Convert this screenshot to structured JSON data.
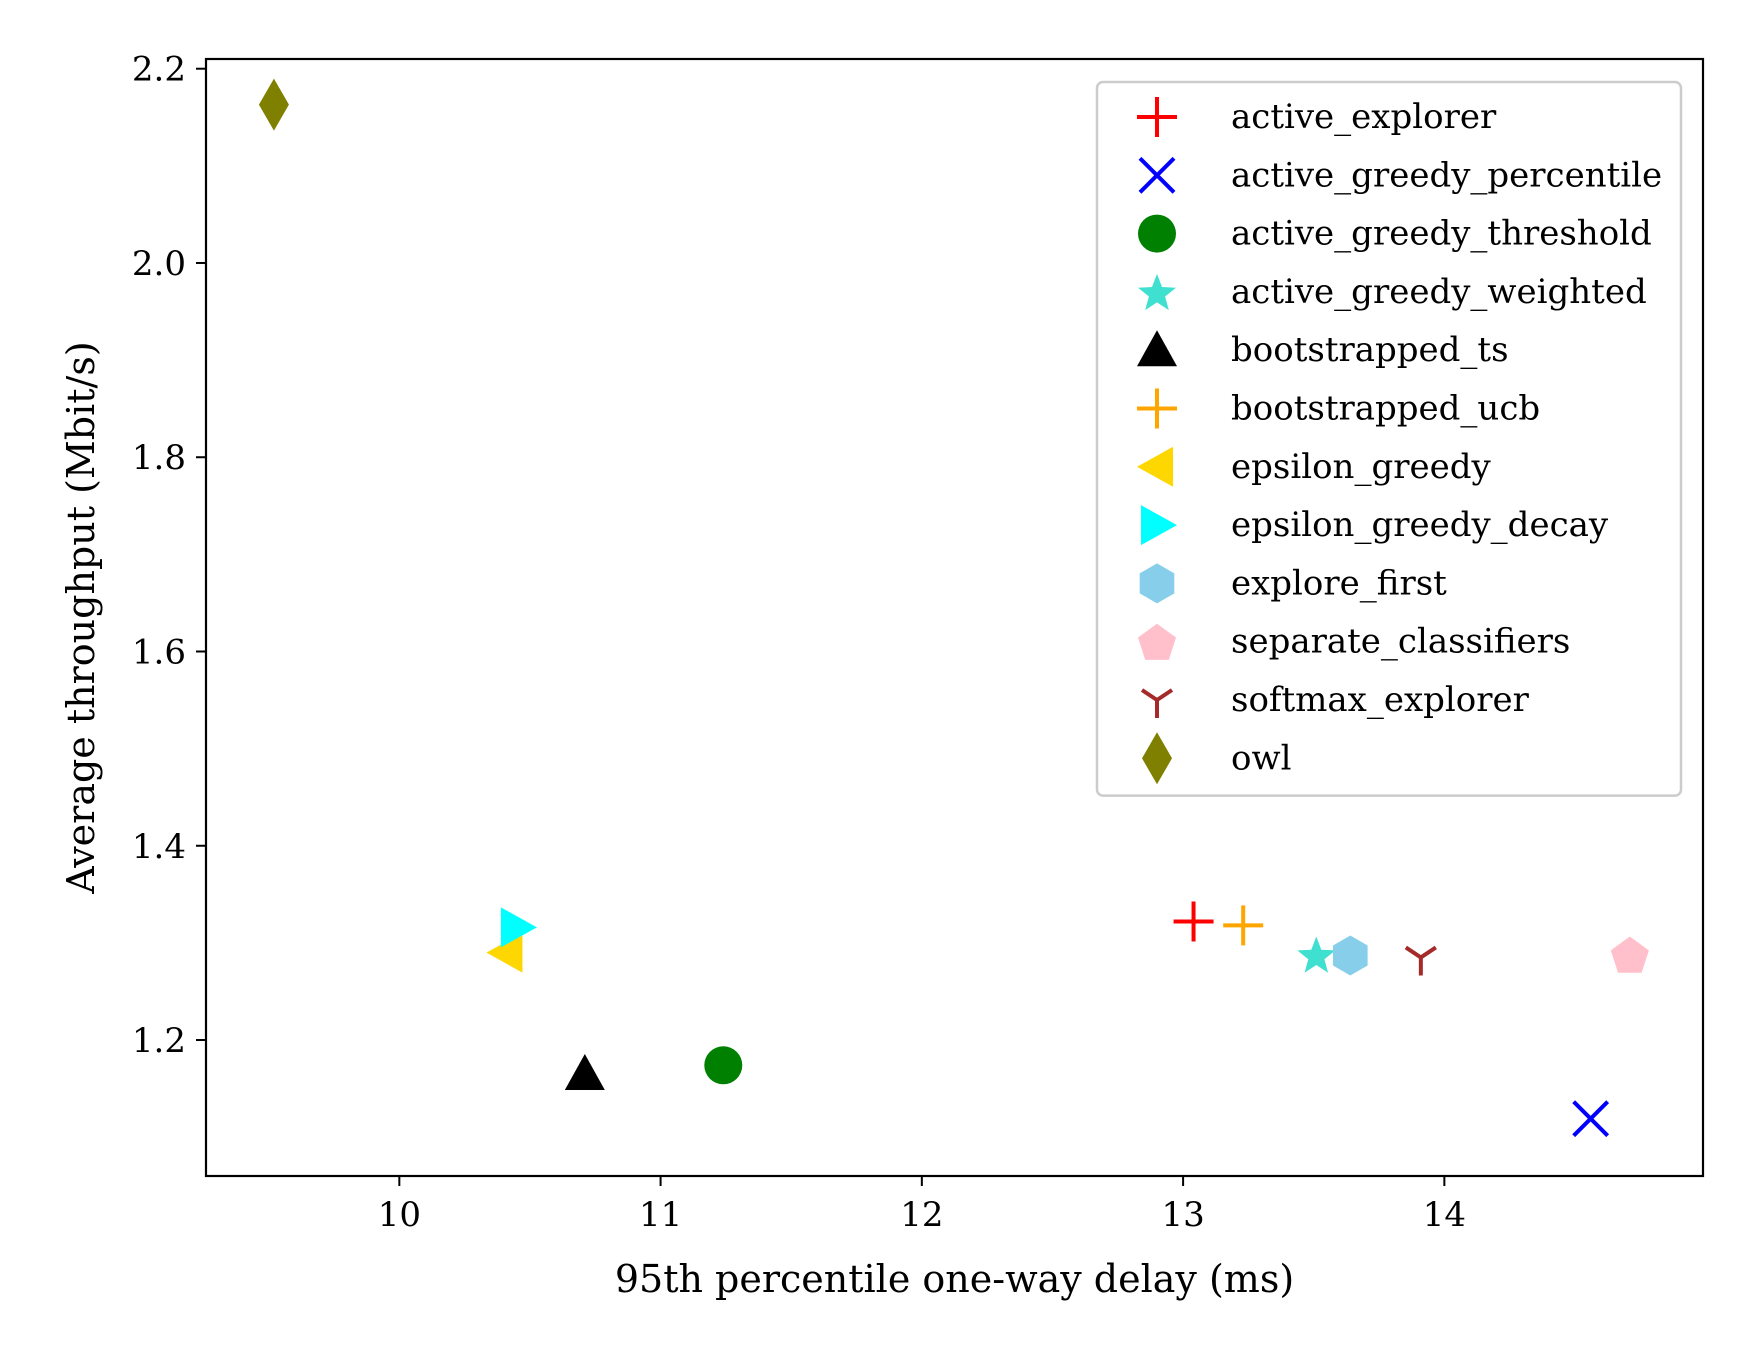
{
  "chart_data": {
    "type": "scatter",
    "xlabel": "95th percentile one-way delay (ms)",
    "ylabel": "Average throughput (Mbit/s)",
    "xlim": [
      9.26,
      14.99
    ],
    "ylim": [
      1.06,
      2.21
    ],
    "xticks": [
      10,
      11,
      12,
      13,
      14
    ],
    "yticks": [
      1.2,
      1.4,
      1.6,
      1.8,
      2.0,
      2.2
    ],
    "xtick_labels": [
      "10",
      "11",
      "12",
      "13",
      "14"
    ],
    "ytick_labels": [
      "1.2",
      "1.4",
      "1.6",
      "1.8",
      "2.0",
      "2.2"
    ],
    "grid": false,
    "legend_position": "top-right",
    "series": [
      {
        "name": "active_explorer",
        "marker": "plus",
        "color": "#ff0000",
        "x": 13.04,
        "y": 1.322
      },
      {
        "name": "active_greedy_percentile",
        "marker": "x",
        "color": "#0000ff",
        "x": 14.56,
        "y": 1.119
      },
      {
        "name": "active_greedy_threshold",
        "marker": "circle",
        "color": "#008000",
        "x": 11.24,
        "y": 1.174
      },
      {
        "name": "active_greedy_weighted",
        "marker": "star",
        "color": "#40e0d0",
        "x": 13.51,
        "y": 1.288
      },
      {
        "name": "bootstrapped_ts",
        "marker": "triangle-up",
        "color": "#000000",
        "x": 10.71,
        "y": 1.165
      },
      {
        "name": "bootstrapped_ucb",
        "marker": "plus",
        "color": "#ffa500",
        "x": 13.23,
        "y": 1.318
      },
      {
        "name": "epsilon_greedy",
        "marker": "triangle-left",
        "color": "#ffd700",
        "x": 10.41,
        "y": 1.29
      },
      {
        "name": "epsilon_greedy_decay",
        "marker": "triangle-right",
        "color": "#00ffff",
        "x": 10.45,
        "y": 1.316
      },
      {
        "name": "explore_first",
        "marker": "hexagon",
        "color": "#87ceeb",
        "x": 13.64,
        "y": 1.287
      },
      {
        "name": "separate_classifiers",
        "marker": "pentagon",
        "color": "#ffc0cb",
        "x": 14.71,
        "y": 1.288
      },
      {
        "name": "softmax_explorer",
        "marker": "tri-down",
        "color": "#a52a2a",
        "x": 13.91,
        "y": 1.285
      },
      {
        "name": "owl",
        "marker": "diamond",
        "color": "#808000",
        "x": 9.52,
        "y": 2.163
      }
    ]
  }
}
